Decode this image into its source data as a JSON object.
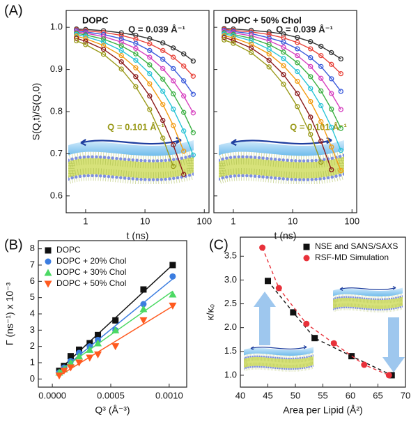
{
  "chart_data": [
    {
      "type": "line",
      "label": "(A)",
      "title": "DOPC",
      "xlabel": "t (ns)",
      "ylabel": "S(Q,t)/S(Q,0)",
      "xscale": "log",
      "xlim": [
        0.47,
        120
      ],
      "ylim": [
        0.56,
        1.04
      ],
      "xticks": [
        1,
        10,
        100
      ],
      "yticks": [
        0.6,
        0.7,
        0.8,
        0.9,
        {
          "value": 1,
          "label": "1.0"
        }
      ],
      "ytick_labels": true,
      "marker": "open-circle",
      "x": [
        0.7,
        1,
        2,
        4,
        7,
        12,
        20,
        30,
        45,
        65
      ],
      "series": [
        {
          "color": "#333333",
          "values": [
            0.996,
            0.995,
            0.992,
            0.987,
            0.981,
            0.973,
            0.963,
            0.951,
            0.937,
            0.92
          ]
        },
        {
          "color": "#e8453c",
          "values": [
            0.994,
            0.992,
            0.988,
            0.981,
            0.972,
            0.961,
            0.945,
            0.929,
            0.908,
            0.884
          ]
        },
        {
          "color": "#3b5bdb",
          "values": [
            0.992,
            0.989,
            0.983,
            0.973,
            0.962,
            0.945,
            0.924,
            0.902,
            0.873,
            0.841
          ]
        },
        {
          "color": "#d63fbf",
          "values": [
            0.989,
            0.986,
            0.978,
            0.965,
            0.95,
            0.929,
            0.902,
            0.873,
            0.837,
            0.797
          ]
        },
        {
          "color": "#3cb043",
          "values": [
            0.986,
            0.982,
            0.972,
            0.956,
            0.937,
            0.911,
            0.877,
            0.842,
            0.798,
            0.75
          ]
        },
        {
          "color": "#29c4d6",
          "values": [
            0.983,
            0.978,
            0.965,
            0.945,
            0.922,
            0.89,
            0.848,
            0.806,
            0.754,
            0.697
          ]
        },
        {
          "color": "#f39c12",
          "values": [
            0.979,
            0.973,
            0.957,
            0.933,
            0.904,
            0.866,
            0.817,
            0.767,
            0.706,
            null
          ]
        },
        {
          "color": "#8b1a1a",
          "values": [
            0.974,
            0.967,
            0.948,
            0.918,
            0.883,
            0.837,
            0.779,
            0.721,
            0.651,
            null
          ]
        },
        {
          "color": "#9a9a1a",
          "values": [
            0.968,
            0.959,
            0.936,
            0.901,
            0.859,
            0.805,
            0.737,
            0.67,
            null,
            null
          ]
        }
      ],
      "annotations": [
        {
          "text": "Q = 0.039 Å⁻¹",
          "color": "#222222"
        },
        {
          "text": "Q = 0.101 Å⁻¹",
          "color": "#9a9a1a"
        }
      ]
    },
    {
      "type": "line",
      "title": "DOPC + 50% Chol",
      "xlabel": "t (ns)",
      "xscale": "log",
      "xlim": [
        0.47,
        120
      ],
      "ylim": [
        0.56,
        1.04
      ],
      "xticks": [
        1,
        10,
        100
      ],
      "yticks": [
        0.6,
        0.7,
        0.8,
        0.9,
        {
          "value": 1,
          "label": "1.0"
        }
      ],
      "ytick_labels": false,
      "marker": "open-circle",
      "x": [
        0.7,
        1,
        2,
        4,
        7,
        12,
        20,
        30,
        45,
        65
      ],
      "series": [
        {
          "color": "#333333",
          "values": [
            0.997,
            0.996,
            0.993,
            0.989,
            0.984,
            0.976,
            0.966,
            0.955,
            0.94,
            0.925
          ]
        },
        {
          "color": "#e8453c",
          "values": [
            0.995,
            0.993,
            0.989,
            0.983,
            0.975,
            0.964,
            0.949,
            0.933,
            0.912,
            0.89
          ]
        },
        {
          "color": "#3b5bdb",
          "values": [
            0.993,
            0.99,
            0.985,
            0.975,
            0.965,
            0.949,
            0.928,
            0.907,
            0.878,
            0.848
          ]
        },
        {
          "color": "#d63fbf",
          "values": [
            0.99,
            0.987,
            0.98,
            0.968,
            0.953,
            0.933,
            0.907,
            0.879,
            0.843,
            0.805
          ]
        },
        {
          "color": "#3cb043",
          "values": [
            0.987,
            0.983,
            0.974,
            0.959,
            0.941,
            0.916,
            0.883,
            0.849,
            0.806,
            0.76
          ]
        },
        {
          "color": "#29c4d6",
          "values": [
            0.984,
            0.98,
            0.968,
            0.948,
            0.926,
            0.895,
            0.855,
            0.814,
            0.763,
            0.708
          ]
        },
        {
          "color": "#f39c12",
          "values": [
            0.98,
            0.975,
            0.96,
            0.937,
            0.909,
            0.872,
            0.824,
            0.776,
            0.716,
            0.66
          ]
        },
        {
          "color": "#8b1a1a",
          "values": [
            0.976,
            0.969,
            0.951,
            0.922,
            0.888,
            0.843,
            0.787,
            0.73,
            0.662,
            null
          ]
        },
        {
          "color": "#9a9a1a",
          "values": [
            0.97,
            0.962,
            0.94,
            0.906,
            0.865,
            0.812,
            0.746,
            0.68,
            null,
            null
          ]
        }
      ],
      "annotations": [
        {
          "text": "Q = 0.039 Å⁻¹",
          "color": "#222222"
        },
        {
          "text": "Q = 0.101 Å⁻¹",
          "color": "#9a9a1a"
        }
      ]
    },
    {
      "type": "scatter",
      "label": "(B)",
      "xlabel": "Q³ (Å⁻³)",
      "ylabel": "Γ (ns⁻¹) x 10⁻³",
      "fit": "linear",
      "legend": "upper left",
      "xlim": [
        -0.00012,
        0.00115
      ],
      "ylim": [
        -0.5,
        8.5
      ],
      "xticks": [
        {
          "value": 0,
          "label": "0.0000"
        },
        {
          "value": 0.0005,
          "label": "0.0005"
        },
        {
          "value": 0.001,
          "label": "0.0010"
        }
      ],
      "yticks": [
        0,
        1,
        2,
        3,
        4,
        5,
        6,
        7,
        8
      ],
      "x": [
        5.9e-05,
        0.0001,
        0.000157,
        0.000229,
        0.00032,
        0.00039,
        0.00054,
        0.00078,
        0.00103
      ],
      "series": [
        {
          "name": "DOPC",
          "color": "#111111",
          "marker": "square",
          "values": [
            0.5,
            0.8,
            1.4,
            1.8,
            2.2,
            2.7,
            3.6,
            5.5,
            7.0
          ]
        },
        {
          "name": "DOPC + 20% Chol",
          "color": "#3b7de0",
          "marker": "circle",
          "values": [
            0.4,
            0.7,
            1.1,
            1.6,
            2.0,
            2.4,
            3.0,
            4.6,
            6.3
          ]
        },
        {
          "name": "DOPC + 30% Chol",
          "color": "#4cd964",
          "marker": "triangle-up",
          "values": [
            0.4,
            0.6,
            1.0,
            1.4,
            1.8,
            2.2,
            3.0,
            4.3,
            5.2
          ]
        },
        {
          "name": "DOPC + 50% Chol",
          "color": "#ff5a1f",
          "marker": "triangle-down",
          "values": [
            0.2,
            0.5,
            0.7,
            1.0,
            1.3,
            1.5,
            2.0,
            3.6,
            4.5
          ]
        }
      ]
    },
    {
      "type": "scatter",
      "label": "(C)",
      "xlabel": "Area per Lipid (Å²)",
      "ylabel": "κ/κ₀",
      "legend": "upper right",
      "xlim": [
        40,
        70
      ],
      "ylim": [
        0.75,
        3.9
      ],
      "xticks": [
        40,
        45,
        50,
        55,
        60,
        65,
        70
      ],
      "yticks": [
        {
          "value": 1,
          "label": "1.0"
        },
        {
          "value": 1.5,
          "label": "1.5"
        },
        {
          "value": 2,
          "label": "2.0"
        },
        {
          "value": 2.5,
          "label": "2.5"
        },
        {
          "value": 3,
          "label": "3.0"
        },
        {
          "value": 3.5,
          "label": "3.5"
        }
      ],
      "series": [
        {
          "name": "NSE and SANS/SAXS",
          "color": "#111111",
          "marker": "square",
          "line_style": "dashed",
          "x": [
            45,
            49.6,
            53.5,
            60.2,
            67.5
          ],
          "values": [
            2.98,
            2.32,
            1.78,
            1.4,
            1.0
          ]
        },
        {
          "name": "RSF-MD Simulation",
          "color": "#e8313a",
          "marker": "circle",
          "line_style": "dashed",
          "x": [
            44,
            47,
            52,
            57,
            62.5,
            67
          ],
          "values": [
            3.68,
            2.83,
            2.08,
            1.67,
            1.22,
            1.0
          ]
        }
      ]
    }
  ]
}
